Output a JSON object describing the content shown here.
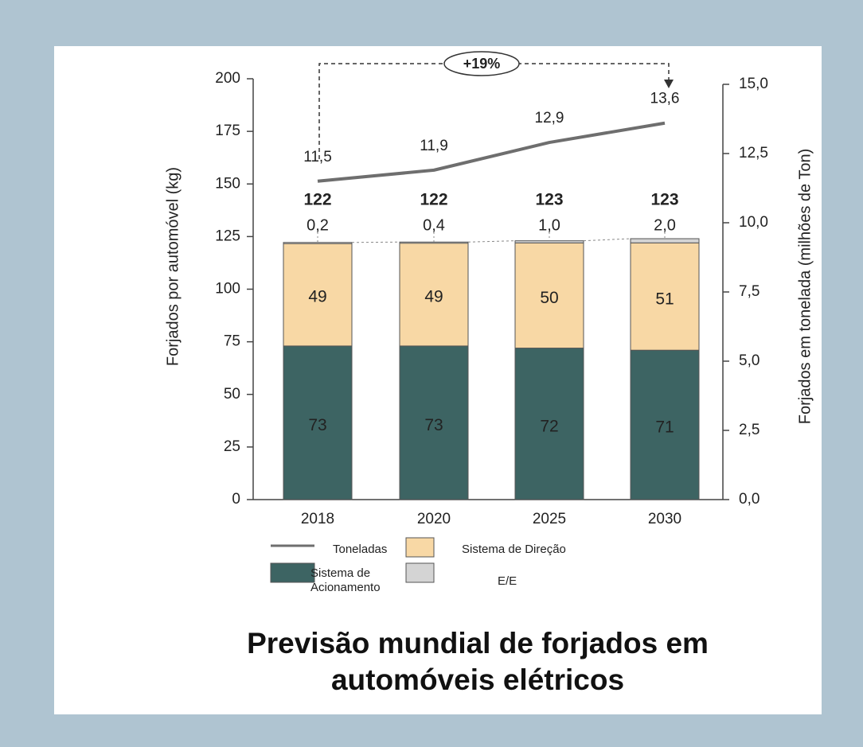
{
  "chart_data": {
    "type": "bar",
    "stacked": true,
    "title": "Previsão mundial de forjados em automóveis elétricos",
    "ylabel": "Forjados por automóvel (kg)",
    "y2label": "Forjados em tonelada (milhões de Ton)",
    "annotation": "+19%",
    "categories": [
      "2018",
      "2020",
      "2025",
      "2030"
    ],
    "series": [
      {
        "name": "Sistema de Acionamento",
        "color": "#3d6463",
        "values": [
          73,
          73,
          72,
          71
        ]
      },
      {
        "name": "Sistema de Direção",
        "color": "#f8d8a5",
        "values": [
          49,
          49,
          50,
          51
        ]
      },
      {
        "name": "E/E",
        "color": "#d4d4d4",
        "values": [
          0.2,
          0.4,
          1.0,
          2.0
        ],
        "value_labels": [
          "0,2",
          "0,4",
          "1,0",
          "2,0"
        ]
      },
      {
        "name": "Toneladas",
        "type": "line",
        "axis": "y2",
        "color": "#6e6e6e",
        "values": [
          11.5,
          11.9,
          12.9,
          13.6
        ],
        "value_labels": [
          "11,5",
          "11,9",
          "12,9",
          "13,6"
        ]
      }
    ],
    "totals": [
      122,
      122,
      123,
      123
    ],
    "ylim": [
      0,
      200
    ],
    "yticks": [
      0,
      25,
      50,
      75,
      100,
      125,
      150,
      175,
      200
    ],
    "y2lim": [
      0,
      15
    ],
    "y2ticks": [
      {
        "value": 0,
        "label": "0,0"
      },
      {
        "value": 2.5,
        "label": "2,5"
      },
      {
        "value": 5,
        "label": "5,0"
      },
      {
        "value": 7.5,
        "label": "7,5"
      },
      {
        "value": 10,
        "label": "10,0"
      },
      {
        "value": 12.5,
        "label": "12,5"
      },
      {
        "value": 15,
        "label": "15,0"
      }
    ]
  }
}
